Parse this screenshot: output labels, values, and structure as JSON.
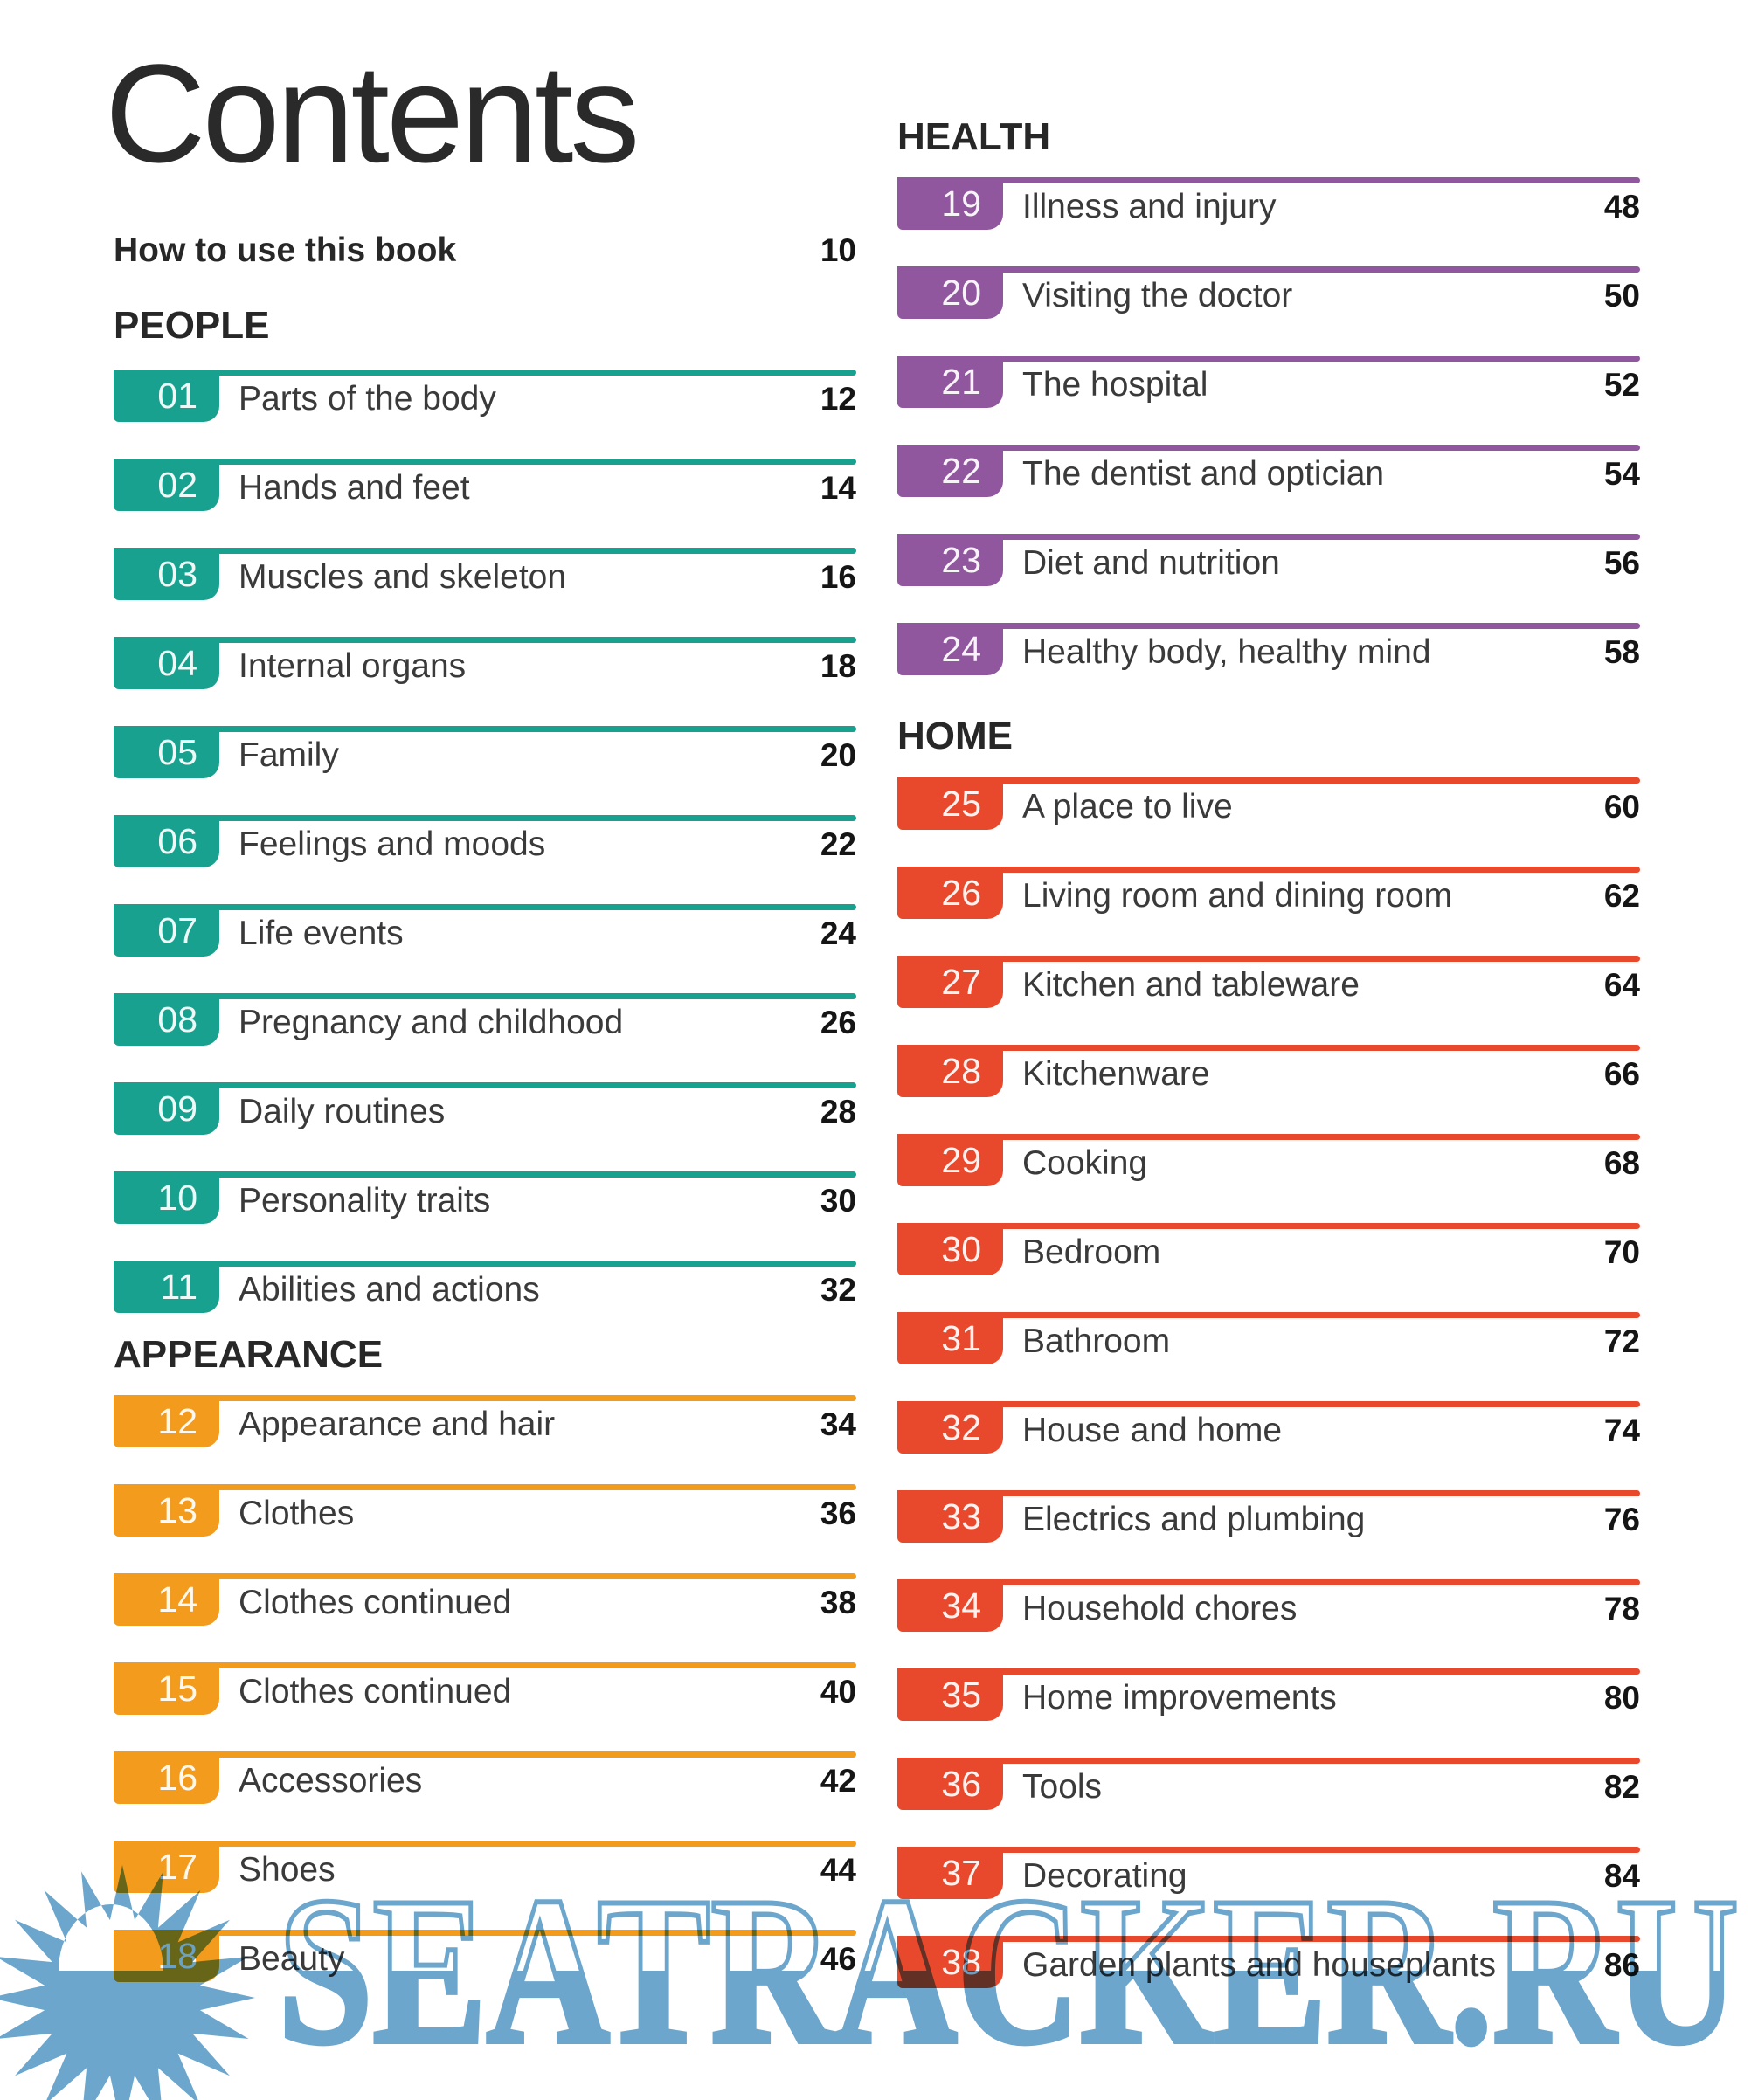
{
  "page": {
    "title": "Contents"
  },
  "intro": {
    "label": "How to use this book",
    "page": "10"
  },
  "sections": [
    {
      "id": "people",
      "label": "PEOPLE",
      "color": "#18A18E",
      "column": "left",
      "items": [
        {
          "num": "01",
          "label": "Parts of the body",
          "page": "12"
        },
        {
          "num": "02",
          "label": "Hands and feet",
          "page": "14"
        },
        {
          "num": "03",
          "label": "Muscles and skeleton",
          "page": "16"
        },
        {
          "num": "04",
          "label": "Internal organs",
          "page": "18"
        },
        {
          "num": "05",
          "label": "Family",
          "page": "20"
        },
        {
          "num": "06",
          "label": "Feelings and moods",
          "page": "22"
        },
        {
          "num": "07",
          "label": "Life events",
          "page": "24"
        },
        {
          "num": "08",
          "label": "Pregnancy and childhood",
          "page": "26"
        },
        {
          "num": "09",
          "label": "Daily routines",
          "page": "28"
        },
        {
          "num": "10",
          "label": "Personality traits",
          "page": "30"
        },
        {
          "num": "11",
          "label": "Abilities and actions",
          "page": "32"
        }
      ]
    },
    {
      "id": "appearance",
      "label": "APPEARANCE",
      "color": "#F29B1D",
      "column": "left",
      "items": [
        {
          "num": "12",
          "label": "Appearance and hair",
          "page": "34"
        },
        {
          "num": "13",
          "label": "Clothes",
          "page": "36"
        },
        {
          "num": "14",
          "label": "Clothes continued",
          "page": "38"
        },
        {
          "num": "15",
          "label": "Clothes continued",
          "page": "40"
        },
        {
          "num": "16",
          "label": "Accessories",
          "page": "42"
        },
        {
          "num": "17",
          "label": "Shoes",
          "page": "44"
        },
        {
          "num": "18",
          "label": "Beauty",
          "page": "46"
        }
      ]
    },
    {
      "id": "health",
      "label": "HEALTH",
      "color": "#90569E",
      "column": "right",
      "items": [
        {
          "num": "19",
          "label": "Illness and injury",
          "page": "48"
        },
        {
          "num": "20",
          "label": "Visiting the doctor",
          "page": "50"
        },
        {
          "num": "21",
          "label": "The hospital",
          "page": "52"
        },
        {
          "num": "22",
          "label": "The dentist and optician",
          "page": "54"
        },
        {
          "num": "23",
          "label": "Diet and nutrition",
          "page": "56"
        },
        {
          "num": "24",
          "label": "Healthy body, healthy mind",
          "page": "58"
        }
      ]
    },
    {
      "id": "home",
      "label": "HOME",
      "color": "#E8492D",
      "column": "right",
      "items": [
        {
          "num": "25",
          "label": "A place to live",
          "page": "60"
        },
        {
          "num": "26",
          "label": "Living room and dining room",
          "page": "62"
        },
        {
          "num": "27",
          "label": "Kitchen and tableware",
          "page": "64"
        },
        {
          "num": "28",
          "label": "Kitchenware",
          "page": "66"
        },
        {
          "num": "29",
          "label": "Cooking",
          "page": "68"
        },
        {
          "num": "30",
          "label": "Bedroom",
          "page": "70"
        },
        {
          "num": "31",
          "label": "Bathroom",
          "page": "72"
        },
        {
          "num": "32",
          "label": "House and home",
          "page": "74"
        },
        {
          "num": "33",
          "label": "Electrics and plumbing",
          "page": "76"
        },
        {
          "num": "34",
          "label": "Household chores",
          "page": "78"
        },
        {
          "num": "35",
          "label": "Home improvements",
          "page": "80"
        },
        {
          "num": "36",
          "label": "Tools",
          "page": "82"
        },
        {
          "num": "37",
          "label": "Decorating",
          "page": "84"
        },
        {
          "num": "38",
          "label": "Garden plants and houseplants",
          "page": "86"
        }
      ]
    }
  ],
  "watermark": {
    "text": "SEATRACKER.RU",
    "color": "#6CA6CC",
    "icon": "sunburst-icon"
  }
}
